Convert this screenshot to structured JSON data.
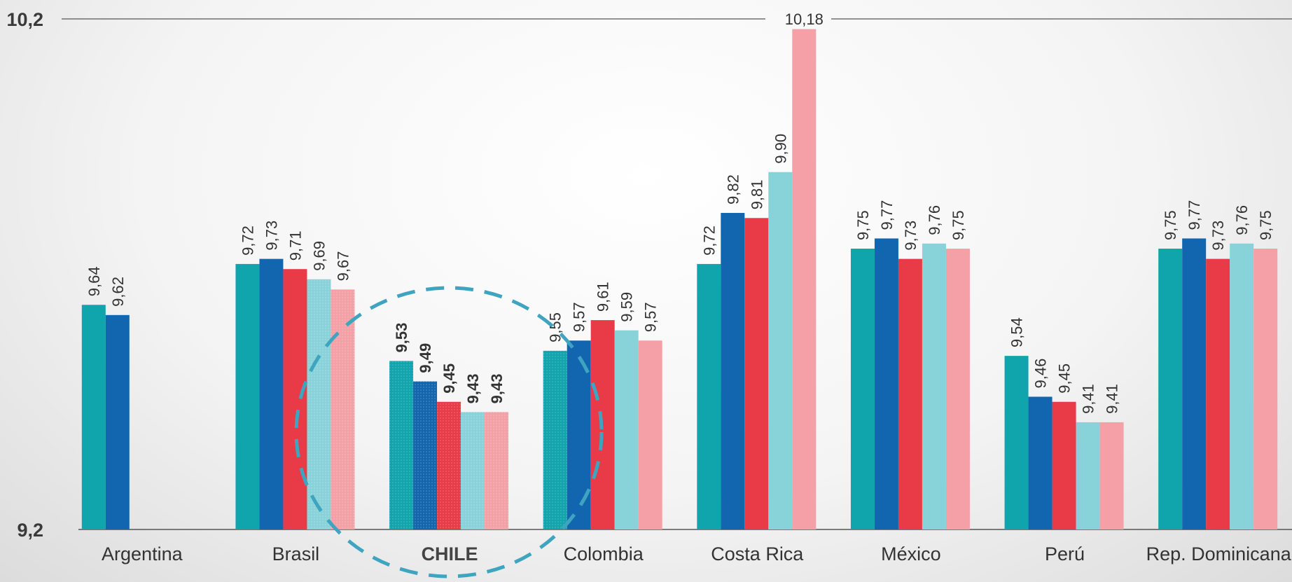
{
  "chart_data": {
    "type": "bar",
    "categories": [
      "Argentina",
      "Brasil",
      "CHILE",
      "Colombia",
      "Costa Rica",
      "México",
      "Perú",
      "Rep. Dominicana"
    ],
    "highlight_category": "CHILE",
    "series": [
      {
        "color": "#10A4AC",
        "values": [
          9.64,
          9.72,
          9.53,
          9.55,
          9.72,
          9.75,
          9.54,
          9.75
        ],
        "labels": [
          "9,64",
          "9,72",
          "9,53",
          "9,55",
          "9,72",
          "9,75",
          "9,54",
          "9,75"
        ]
      },
      {
        "color": "#1266B0",
        "values": [
          9.62,
          9.73,
          9.49,
          9.57,
          9.82,
          9.77,
          9.46,
          9.77
        ],
        "labels": [
          "9,62",
          "9,73",
          "9,49",
          "9,57",
          "9,82",
          "9,77",
          "9,46",
          "9,77"
        ]
      },
      {
        "color": "#E83A47",
        "values": [
          null,
          9.71,
          9.45,
          9.61,
          9.81,
          9.73,
          9.45,
          9.73
        ],
        "labels": [
          "",
          "9,71",
          "9,45",
          "9,61",
          "9,81",
          "9,73",
          "9,45",
          "9,73"
        ]
      },
      {
        "color": "#88D3D9",
        "values": [
          null,
          9.69,
          9.43,
          9.59,
          9.9,
          9.76,
          9.41,
          9.76
        ],
        "labels": [
          "",
          "9,69",
          "9,43",
          "9,59",
          "9,90",
          "9,76",
          "9,41",
          "9,76"
        ]
      },
      {
        "color": "#F4A0A6",
        "values": [
          null,
          9.67,
          9.43,
          9.57,
          10.18,
          9.75,
          9.41,
          9.75
        ],
        "labels": [
          "",
          "9,67",
          "9,43",
          "9,57",
          "10,18",
          "9,75",
          "9,41",
          "9,75"
        ]
      }
    ],
    "ylim": [
      9.2,
      10.2
    ],
    "yticks": [
      {
        "value": 9.2,
        "label": "9,2"
      },
      {
        "value": 10.2,
        "label": "10,2"
      }
    ],
    "highlight_ring_color": "#3FA4C0",
    "axis_color": "#555555"
  }
}
